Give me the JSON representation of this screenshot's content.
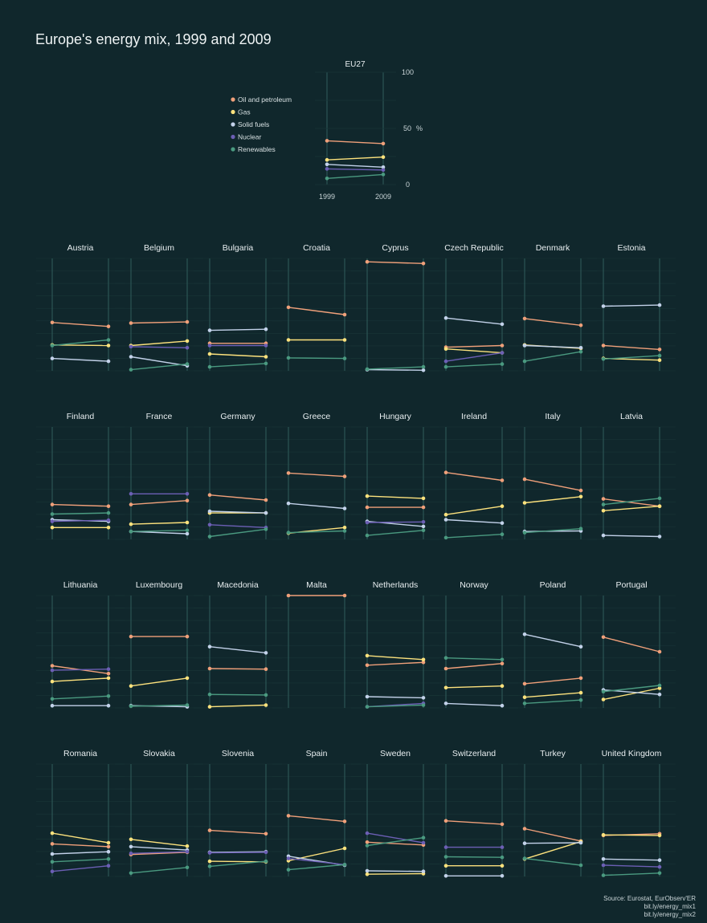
{
  "title": "Europe's energy mix, 1999 and 2009",
  "legend": [
    {
      "name": "Oil and petroleum",
      "color": "#f0a07a"
    },
    {
      "name": "Gas",
      "color": "#fde27d"
    },
    {
      "name": "Solid fuels",
      "color": "#c3d2ea"
    },
    {
      "name": "Nuclear",
      "color": "#6c5fb5"
    },
    {
      "name": "Renewables",
      "color": "#4a9a80"
    }
  ],
  "eu": {
    "label": "EU27",
    "tick_top": "100",
    "tick_mid": "50",
    "tick_bottom": "0",
    "unit": "%"
  },
  "years": [
    "1999",
    "2009"
  ],
  "source": [
    "Source: Eurostat, EurObserv'ER",
    "bit.ly/energy_mix1",
    "bit.ly/energy_mix2"
  ],
  "chart_data": {
    "type": "line",
    "x": [
      "1999",
      "2009"
    ],
    "ylim": [
      0,
      100
    ],
    "series_names": [
      "Oil and petroleum",
      "Gas",
      "Solid fuels",
      "Nuclear",
      "Renewables"
    ],
    "panels": [
      {
        "name": "EU27",
        "values": [
          [
            39,
            36.5
          ],
          [
            22,
            24.5
          ],
          [
            18,
            15.5
          ],
          [
            14,
            13
          ],
          [
            5.5,
            9
          ]
        ]
      },
      {
        "name": "Austria",
        "values": [
          [
            43,
            39.5
          ],
          [
            23,
            22.5
          ],
          [
            11,
            8.5
          ],
          null,
          [
            22.5,
            27.5
          ]
        ]
      },
      {
        "name": "Belgium",
        "values": [
          [
            42.5,
            43.5
          ],
          [
            22.5,
            26.5
          ],
          [
            12.5,
            4.5
          ],
          [
            21.5,
            20.5
          ],
          [
            1,
            6
          ]
        ]
      },
      {
        "name": "Bulgaria",
        "values": [
          [
            24.5,
            24.5
          ],
          [
            15,
            12.5
          ],
          [
            36,
            37
          ],
          [
            22.5,
            22.5
          ],
          [
            3.5,
            6.5
          ]
        ]
      },
      {
        "name": "Croatia",
        "values": [
          [
            56.5,
            50
          ],
          [
            27.5,
            27.5
          ],
          null,
          null,
          [
            11.5,
            11
          ]
        ]
      },
      {
        "name": "Cyprus",
        "values": [
          [
            97,
            95.5
          ],
          null,
          [
            1,
            0.5
          ],
          null,
          [
            1.5,
            3.5
          ]
        ]
      },
      {
        "name": "Czech Republic",
        "values": [
          [
            21,
            22.5
          ],
          [
            19.5,
            16
          ],
          [
            47,
            41.5
          ],
          [
            8.5,
            16
          ],
          [
            3.5,
            6
          ]
        ]
      },
      {
        "name": "Denmark",
        "values": [
          [
            46.5,
            40.5
          ],
          [
            23,
            20
          ],
          [
            22.5,
            20.5
          ],
          null,
          [
            8.5,
            17
          ]
        ]
      },
      {
        "name": "Estonia",
        "values": [
          [
            22.5,
            19
          ],
          [
            11,
            9.5
          ],
          [
            57.5,
            58.5
          ],
          null,
          [
            10.5,
            13.5
          ]
        ]
      },
      {
        "name": "Finland",
        "values": [
          [
            31,
            29.5
          ],
          [
            10.5,
            10.5
          ],
          [
            17.5,
            16
          ],
          [
            16,
            17
          ],
          [
            22.5,
            23.5
          ]
        ]
      },
      {
        "name": "France",
        "values": [
          [
            31,
            34.5
          ],
          [
            13.5,
            15
          ],
          [
            7,
            5
          ],
          [
            40.5,
            40.5
          ],
          [
            7,
            8
          ]
        ]
      },
      {
        "name": "Germany",
        "values": [
          [
            39.5,
            35
          ],
          [
            23.5,
            23.5
          ],
          [
            25,
            23.5
          ],
          [
            13,
            10.5
          ],
          [
            2.5,
            9
          ]
        ]
      },
      {
        "name": "Greece",
        "values": [
          [
            59,
            56
          ],
          [
            5.5,
            10.5
          ],
          [
            32,
            27.5
          ],
          null,
          [
            6,
            7.5
          ]
        ]
      },
      {
        "name": "Hungary",
        "values": [
          [
            28.5,
            28.5
          ],
          [
            38.5,
            36.5
          ],
          [
            16,
            11.5
          ],
          [
            15,
            15.5
          ],
          [
            3.5,
            8
          ]
        ]
      },
      {
        "name": "Ireland",
        "values": [
          [
            59.5,
            52.5
          ],
          [
            22,
            29.5
          ],
          [
            17.5,
            14.5
          ],
          null,
          [
            1.5,
            4.5
          ]
        ]
      },
      {
        "name": "Italy",
        "values": [
          [
            53.5,
            43.5
          ],
          [
            32.5,
            38
          ],
          [
            7,
            7.5
          ],
          null,
          [
            6,
            9.5
          ]
        ]
      },
      {
        "name": "Latvia",
        "values": [
          [
            36,
            29.5
          ],
          [
            25.5,
            29.5
          ],
          [
            3.5,
            2.5
          ],
          null,
          [
            31,
            36.5
          ]
        ]
      },
      {
        "name": "Lithuania",
        "values": [
          [
            37.5,
            30.5
          ],
          [
            23.5,
            26.5
          ],
          [
            2,
            2
          ],
          [
            33.5,
            34.5
          ],
          [
            8,
            10.5
          ]
        ]
      },
      {
        "name": "Luxembourg",
        "values": [
          [
            63.5,
            63.5
          ],
          [
            19.5,
            26.5
          ],
          [
            2,
            1
          ],
          null,
          [
            1.5,
            2.5
          ]
        ]
      },
      {
        "name": "Macedonia",
        "values": [
          [
            35,
            34.5
          ],
          [
            1,
            2.5
          ],
          [
            54.5,
            49
          ],
          null,
          [
            12,
            11.5
          ]
        ]
      },
      {
        "name": "Malta",
        "values": [
          [
            100,
            100
          ],
          null,
          null,
          null,
          null
        ]
      },
      {
        "name": "Netherlands",
        "values": [
          [
            38,
            40.5
          ],
          [
            46.5,
            43
          ],
          [
            10,
            9
          ],
          [
            1,
            4
          ],
          [
            1,
            2.5
          ]
        ]
      },
      {
        "name": "Norway",
        "values": [
          [
            35,
            39.5
          ],
          [
            18,
            19.5
          ],
          [
            4,
            2
          ],
          null,
          [
            44.5,
            43
          ]
        ]
      },
      {
        "name": "Poland",
        "values": [
          [
            21.5,
            26.5
          ],
          [
            9.5,
            13.5
          ],
          [
            65.5,
            54.5
          ],
          null,
          [
            4,
            7
          ]
        ]
      },
      {
        "name": "Portugal",
        "values": [
          [
            63,
            50
          ],
          [
            7.5,
            17.5
          ],
          [
            16,
            12
          ],
          null,
          [
            14.5,
            20
          ]
        ]
      },
      {
        "name": "Romania",
        "values": [
          [
            29,
            26.5
          ],
          [
            38.5,
            30
          ],
          [
            20,
            22
          ],
          [
            4.5,
            9.5
          ],
          [
            13,
            15.5
          ]
        ]
      },
      {
        "name": "Slovakia",
        "values": [
          [
            19.5,
            21.5
          ],
          [
            33,
            27
          ],
          [
            26.5,
            23.5
          ],
          [
            20.5,
            22
          ],
          [
            3,
            8
          ]
        ]
      },
      {
        "name": "Slovenia",
        "values": [
          [
            41,
            38
          ],
          [
            13.5,
            13
          ],
          [
            21.5,
            22
          ],
          [
            21,
            21.5
          ],
          [
            9,
            13.5
          ]
        ]
      },
      {
        "name": "Spain",
        "values": [
          [
            54,
            49
          ],
          [
            14,
            25
          ],
          [
            18,
            10
          ],
          [
            16,
            10.5
          ],
          [
            6,
            10.5
          ]
        ]
      },
      {
        "name": "Sweden",
        "values": [
          [
            30.5,
            28
          ],
          [
            2,
            2.5
          ],
          [
            5,
            4.5
          ],
          [
            38.5,
            30
          ],
          [
            27.5,
            34.5
          ]
        ]
      },
      {
        "name": "Switzerland",
        "values": [
          [
            49.5,
            46.5
          ],
          [
            9.5,
            9.5
          ],
          [
            0.5,
            0.5
          ],
          [
            26,
            26
          ],
          [
            17.5,
            17
          ]
        ]
      },
      {
        "name": "Turkey",
        "values": [
          [
            42.5,
            31.5
          ],
          [
            15.5,
            31
          ],
          [
            29.5,
            30
          ],
          null,
          [
            16,
            10
          ]
        ]
      },
      {
        "name": "United Kingdom",
        "values": [
          [
            36.5,
            38
          ],
          [
            37,
            36.5
          ],
          [
            15.5,
            14.5
          ],
          [
            10,
            8.5
          ],
          [
            1,
            3
          ]
        ]
      }
    ]
  }
}
